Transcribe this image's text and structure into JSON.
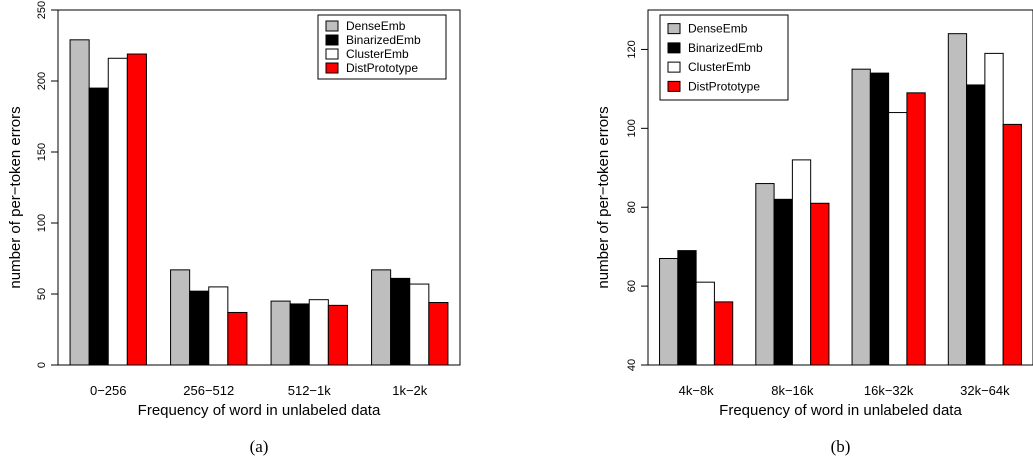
{
  "colors": {
    "DenseEmb": "#bebebe",
    "BinarizedEmb": "#000000",
    "ClusterEmb": "#ffffff",
    "DistPrototype": "#ff0000"
  },
  "chart_data": [
    {
      "type": "bar",
      "caption": "(a)",
      "xlabel": "Frequency of word in unlabeled data",
      "ylabel": "number of per−token errors",
      "categories": [
        "0−256",
        "256−512",
        "512−1k",
        "1k−2k"
      ],
      "ylim": [
        0,
        250
      ],
      "yticks": [
        0,
        50,
        100,
        150,
        200,
        250
      ],
      "legend_position": "top-right",
      "series": [
        {
          "name": "DenseEmb",
          "values": [
            229,
            67,
            45,
            67
          ]
        },
        {
          "name": "BinarizedEmb",
          "values": [
            195,
            52,
            43,
            61
          ]
        },
        {
          "name": "ClusterEmb",
          "values": [
            216,
            55,
            46,
            57
          ]
        },
        {
          "name": "DistPrototype",
          "values": [
            219,
            37,
            42,
            44
          ]
        }
      ]
    },
    {
      "type": "bar",
      "caption": "(b)",
      "xlabel": "Frequency of word in unlabeled data",
      "ylabel": "number of per−token errors",
      "categories": [
        "4k−8k",
        "8k−16k",
        "16k−32k",
        "32k−64k"
      ],
      "ylim": [
        40,
        130
      ],
      "yticks": [
        40,
        60,
        80,
        100,
        120
      ],
      "legend_position": "top-left",
      "series": [
        {
          "name": "DenseEmb",
          "values": [
            67,
            86,
            115,
            124
          ]
        },
        {
          "name": "BinarizedEmb",
          "values": [
            69,
            82,
            114,
            111
          ]
        },
        {
          "name": "ClusterEmb",
          "values": [
            61,
            92,
            104,
            119
          ]
        },
        {
          "name": "DistPrototype",
          "values": [
            56,
            81,
            109,
            101
          ]
        }
      ]
    }
  ]
}
